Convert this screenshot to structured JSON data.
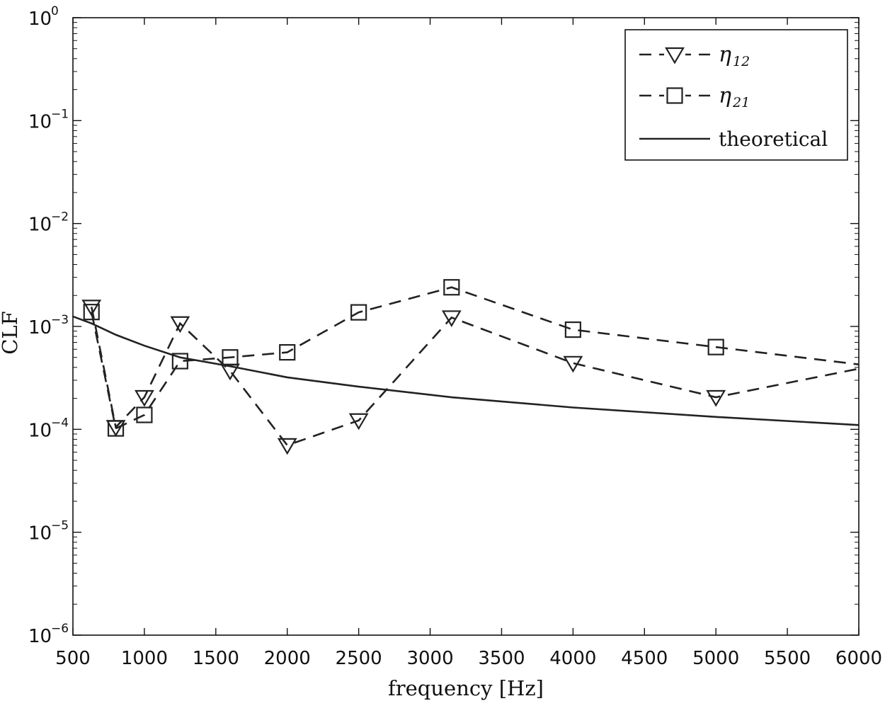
{
  "chart_data": {
    "type": "line",
    "xlabel": "frequency [Hz]",
    "ylabel": "CLF",
    "xlim": [
      500,
      6000
    ],
    "ylim": [
      1e-06,
      1
    ],
    "yscale": "log",
    "grid": false,
    "legend_position": "top-right",
    "x_ticks": [
      500,
      1000,
      1500,
      2000,
      2500,
      3000,
      3500,
      4000,
      4500,
      5000,
      5500,
      6000
    ],
    "x_tick_labels": [
      "500",
      "1000",
      "1500",
      "2000",
      "2500",
      "3000",
      "3500",
      "4000",
      "4500",
      "5000",
      "5500",
      "6000"
    ],
    "y_ticks": [
      {
        "value": 1e-06,
        "base": "10",
        "exp": "−6"
      },
      {
        "value": 1e-05,
        "base": "10",
        "exp": "−5"
      },
      {
        "value": 0.0001,
        "base": "10",
        "exp": "−4"
      },
      {
        "value": 0.001,
        "base": "10",
        "exp": "−3"
      },
      {
        "value": 0.01,
        "base": "10",
        "exp": "−2"
      },
      {
        "value": 0.1,
        "base": "10",
        "exp": "−1"
      },
      {
        "value": 1,
        "base": "10",
        "exp": "0"
      }
    ],
    "series": [
      {
        "name": "η12",
        "legend_main": "η",
        "legend_sub": "12",
        "marker": "triangle-down",
        "linestyle": "dashed",
        "color": "#222222",
        "x": [
          630,
          800,
          1000,
          1250,
          1600,
          2000,
          2500,
          3150,
          4000,
          5000,
          6300
        ],
        "y": [
          0.00155,
          0.000105,
          0.000205,
          0.00107,
          0.00037,
          7e-05,
          0.000122,
          0.00122,
          0.00044,
          0.000205,
          0.00047
        ]
      },
      {
        "name": "η21",
        "legend_main": "η",
        "legend_sub": "21",
        "marker": "square",
        "linestyle": "dashed",
        "color": "#222222",
        "x": [
          630,
          800,
          1000,
          1250,
          1600,
          2000,
          2500,
          3150,
          4000,
          5000,
          6300
        ],
        "y": [
          0.00138,
          0.000102,
          0.000138,
          0.00046,
          0.0005,
          0.00056,
          0.00137,
          0.0024,
          0.00093,
          0.00063,
          0.00038
        ]
      },
      {
        "name": "theoretical",
        "legend_main": "theoretical",
        "legend_sub": "",
        "marker": "none",
        "linestyle": "solid",
        "color": "#222222",
        "x": [
          500,
          630,
          800,
          1000,
          1250,
          1600,
          2000,
          2500,
          3150,
          4000,
          5000,
          6000
        ],
        "y": [
          0.00125,
          0.00107,
          0.00083,
          0.00065,
          0.0005,
          0.00041,
          0.00032,
          0.00026,
          0.000205,
          0.000163,
          0.000132,
          0.00011
        ]
      }
    ]
  }
}
